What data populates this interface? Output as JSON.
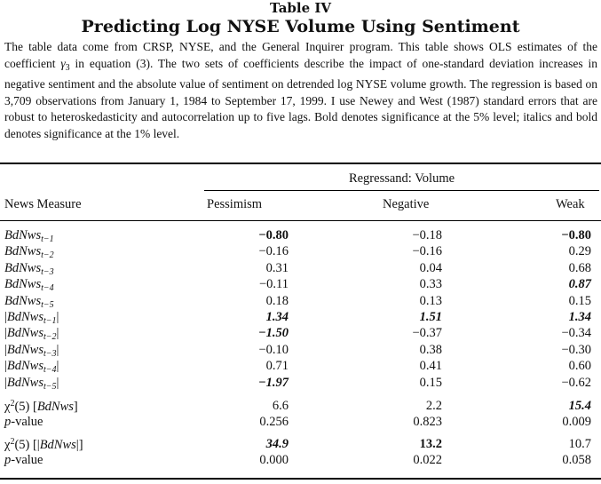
{
  "table_label": "Table IV",
  "title": "Predicting Log NYSE Volume Using Sentiment",
  "caption": {
    "part1": "The table data come from CRSP, NYSE, and the General Inquirer program. This table shows OLS estimates of the coefficient ",
    "gamma": "γ",
    "gamma_sub": "3",
    "part2": " in equation (3). The two sets of coefficients describe the impact of one-standard deviation increases in negative sentiment and the absolute value of sentiment on detrended log NYSE volume growth. The regression is based on 3,709 observations from January 1, 1984 to September 17, 1999. I use Newey and West (1987) standard errors that are robust to heteroskedasticity and autocorrelation up to five lags. Bold denotes significance at the 5% level; italics and bold denotes significance at the 1% level."
  },
  "regressand_label": "Regressand: Volume",
  "headers": {
    "news_measure": "News Measure",
    "col1": "Pessimism",
    "col2": "Negative",
    "col3": "Weak"
  },
  "rows": [
    {
      "base": "BdNws",
      "sub": "t−1",
      "abs": false,
      "values": [
        "−0.80",
        "−0.18",
        "−0.80"
      ],
      "styles": [
        "b",
        "",
        "b"
      ]
    },
    {
      "base": "BdNws",
      "sub": "t−2",
      "abs": false,
      "values": [
        "−0.16",
        "−0.16",
        "0.29"
      ],
      "styles": [
        "",
        "",
        ""
      ]
    },
    {
      "base": "BdNws",
      "sub": "t−3",
      "abs": false,
      "values": [
        "0.31",
        "0.04",
        "0.68"
      ],
      "styles": [
        "",
        "",
        ""
      ]
    },
    {
      "base": "BdNws",
      "sub": "t−4",
      "abs": false,
      "values": [
        "−0.11",
        "0.33",
        "0.87"
      ],
      "styles": [
        "",
        "",
        "bi"
      ]
    },
    {
      "base": "BdNws",
      "sub": "t−5",
      "abs": false,
      "values": [
        "0.18",
        "0.13",
        "0.15"
      ],
      "styles": [
        "",
        "",
        ""
      ]
    },
    {
      "base": "BdNws",
      "sub": "t−1",
      "abs": true,
      "values": [
        "1.34",
        "1.51",
        "1.34"
      ],
      "styles": [
        "bi",
        "bi",
        "bi"
      ]
    },
    {
      "base": "BdNws",
      "sub": "t−2",
      "abs": true,
      "values": [
        "−1.50",
        "−0.37",
        "−0.34"
      ],
      "styles": [
        "bi",
        "",
        ""
      ]
    },
    {
      "base": "BdNws",
      "sub": "t−3",
      "abs": true,
      "values": [
        "−0.10",
        "0.38",
        "−0.30"
      ],
      "styles": [
        "",
        "",
        ""
      ]
    },
    {
      "base": "BdNws",
      "sub": "t−4",
      "abs": true,
      "values": [
        "0.71",
        "0.41",
        "0.60"
      ],
      "styles": [
        "",
        "",
        ""
      ]
    },
    {
      "base": "BdNws",
      "sub": "t−5",
      "abs": true,
      "values": [
        "−1.97",
        "0.15",
        "−0.62"
      ],
      "styles": [
        "bi",
        "",
        ""
      ]
    }
  ],
  "tests": [
    {
      "chi_label": "χ",
      "chi_sup": "2",
      "chi_rest": "(5) [BdNws]",
      "chi_values": [
        "6.6",
        "2.2",
        "15.4"
      ],
      "chi_styles": [
        "",
        "",
        "bi"
      ],
      "p_label": "p",
      "p_rest": "-value",
      "p_values": [
        "0.256",
        "0.823",
        "0.009"
      ]
    },
    {
      "chi_label": "χ",
      "chi_sup": "2",
      "chi_rest": "(5) [|BdNws|]",
      "chi_values": [
        "34.9",
        "13.2",
        "10.7"
      ],
      "chi_styles": [
        "bi",
        "b",
        ""
      ],
      "p_label": "p",
      "p_rest": "-value",
      "p_values": [
        "0.000",
        "0.022",
        "0.058"
      ]
    }
  ]
}
